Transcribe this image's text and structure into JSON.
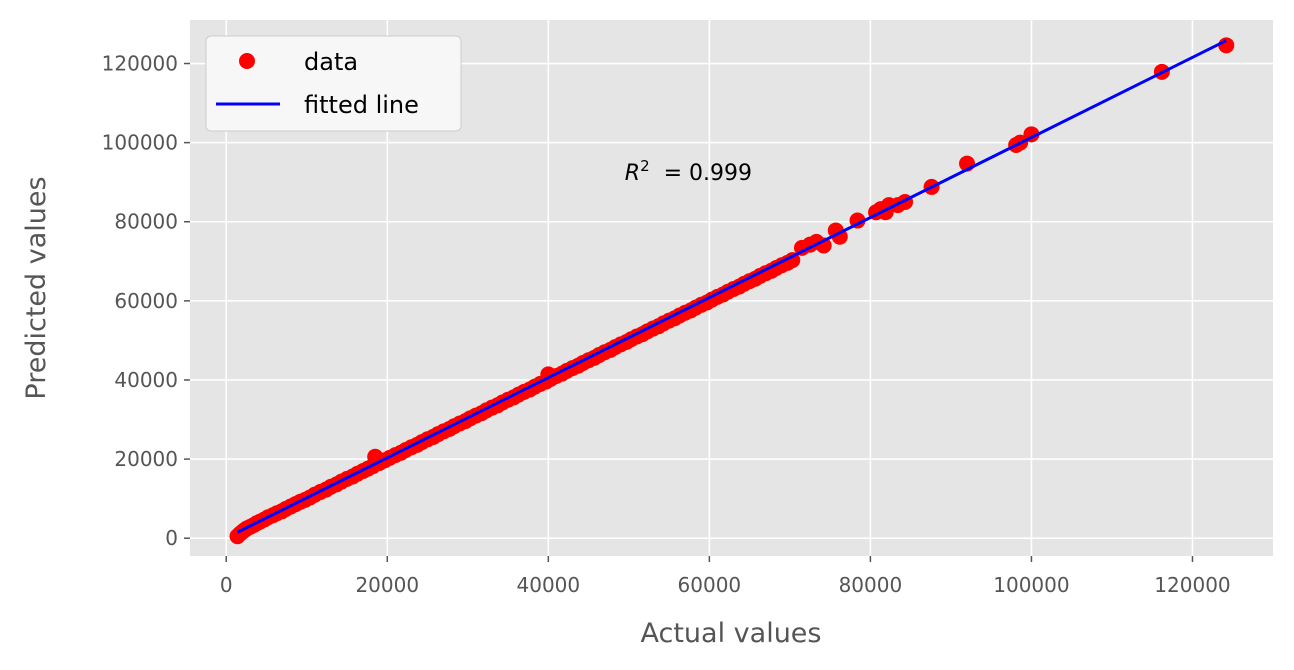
{
  "chart_data": {
    "type": "scatter",
    "xlabel": "Actual values",
    "ylabel": "Predicted values",
    "xlim": [
      -4500,
      130000
    ],
    "ylim": [
      -4500,
      131000
    ],
    "x_ticks": [
      0,
      20000,
      40000,
      60000,
      80000,
      100000,
      120000
    ],
    "y_ticks": [
      0,
      20000,
      40000,
      60000,
      80000,
      100000,
      120000
    ],
    "grid": true,
    "legend_position": "top-left",
    "annotation": {
      "symbol": "R",
      "superscript": "2",
      "text": " = 0.999",
      "x": 49500,
      "y": 90500
    },
    "colors": {
      "data": "#ff0000",
      "fit": "#0000ff",
      "background": "#e5e5e5",
      "grid": "#ffffff"
    },
    "series": [
      {
        "name": "data",
        "kind": "scatter",
        "x": [
          1400,
          1700,
          2000,
          2300,
          2600,
          3000,
          3400,
          3800,
          4200,
          4700,
          5200,
          5800,
          6300,
          6900,
          7400,
          8000,
          8600,
          9200,
          9800,
          10400,
          11000,
          11700,
          12400,
          13000,
          13700,
          14300,
          15000,
          15700,
          16300,
          17000,
          17600,
          18200,
          18500,
          19000,
          19700,
          20300,
          21000,
          21700,
          22300,
          23000,
          23700,
          24300,
          25000,
          25700,
          26300,
          27000,
          27700,
          28300,
          29000,
          29700,
          30300,
          31000,
          31700,
          32300,
          33000,
          33700,
          34300,
          35000,
          35700,
          36300,
          37000,
          37700,
          38300,
          39000,
          39700,
          40000,
          40300,
          41000,
          41700,
          42300,
          43000,
          43700,
          44300,
          45000,
          45700,
          46300,
          47000,
          47700,
          48300,
          49000,
          49700,
          50300,
          51000,
          51700,
          52300,
          53000,
          53700,
          54300,
          55000,
          55700,
          56300,
          57000,
          57700,
          58300,
          59000,
          59700,
          60300,
          61000,
          61700,
          62300,
          63000,
          63700,
          64300,
          65000,
          65700,
          66300,
          67000,
          67700,
          68300,
          69000,
          69700,
          70300,
          71500,
          72500,
          73300,
          74200,
          75700,
          76200,
          78400,
          80700,
          81300,
          81900,
          82300,
          83400,
          84300,
          87600,
          92000,
          98100,
          98600,
          100000,
          116200,
          124200
        ],
        "y": [
          500,
          1100,
          1600,
          2100,
          2500,
          2900,
          3300,
          3800,
          4200,
          4700,
          5300,
          5800,
          6300,
          6800,
          7400,
          8000,
          8600,
          9200,
          9700,
          10300,
          11000,
          11700,
          12300,
          13000,
          13600,
          14300,
          15000,
          15600,
          16300,
          17000,
          17600,
          18200,
          20600,
          19000,
          19700,
          20300,
          21000,
          21600,
          22300,
          23000,
          23600,
          24300,
          25000,
          25600,
          26300,
          27000,
          27600,
          28300,
          29000,
          29600,
          30300,
          31000,
          31600,
          32300,
          33000,
          33600,
          34300,
          35000,
          35600,
          36300,
          37000,
          37600,
          38300,
          39000,
          39600,
          41400,
          40300,
          41000,
          41600,
          42300,
          43000,
          43600,
          44300,
          45000,
          45600,
          46300,
          47000,
          47600,
          48300,
          49000,
          49600,
          50300,
          51000,
          51600,
          52300,
          53000,
          53600,
          54300,
          55000,
          55600,
          56300,
          57000,
          57600,
          58300,
          59000,
          59600,
          60300,
          61000,
          61600,
          62300,
          63000,
          63600,
          64300,
          65000,
          65600,
          66300,
          67000,
          67600,
          68300,
          69000,
          69600,
          70300,
          73400,
          74200,
          74900,
          74000,
          77800,
          76200,
          80300,
          82400,
          83200,
          82400,
          84200,
          84200,
          85000,
          88800,
          94700,
          99400,
          100000,
          102100,
          117900,
          124600
        ]
      },
      {
        "name": "fitted line",
        "kind": "line",
        "x": [
          1400,
          124200
        ],
        "y": [
          1500,
          125800
        ]
      }
    ]
  }
}
